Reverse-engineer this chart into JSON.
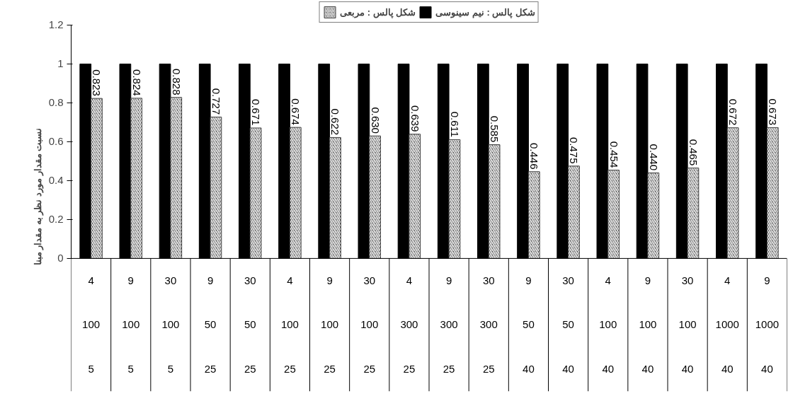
{
  "chart_data": {
    "type": "bar",
    "ylabel": "نسبت مقدار مورد نظر به مقدار مبنا",
    "categories": [
      "4\n100\n5",
      "9\n100\n5",
      "30\n100\n5",
      "9\n50\n25",
      "30\n50\n25",
      "4\n100\n25",
      "9\n100\n25",
      "30\n100\n25",
      "4\n300\n25",
      "9\n300\n25",
      "30\n300\n25",
      "9\n50\n40",
      "30\n50\n40",
      "4\n100\n40",
      "9\n100\n40",
      "30\n100\n40",
      "4\n1000\n40",
      "9\n1000\n40"
    ],
    "series": [
      {
        "name": "شکل پالس : نیم سینوسی",
        "color": "#000000",
        "values": [
          1,
          1,
          1,
          1,
          1,
          1,
          1,
          1,
          1,
          1,
          1,
          1,
          1,
          1,
          1,
          1,
          1,
          1
        ]
      },
      {
        "name": "شکل پالس : مربعی",
        "color": "#444444",
        "values": [
          0.823,
          0.824,
          0.828,
          0.727,
          0.671,
          0.674,
          0.622,
          0.63,
          0.639,
          0.611,
          0.585,
          0.446,
          0.475,
          0.454,
          0.44,
          0.465,
          0.672,
          0.673
        ],
        "value_labels": [
          "0.823",
          "0.824",
          "0.828",
          "0.727",
          "0.671",
          "0.674",
          "0.622",
          "0.630",
          "0.639",
          "0.611",
          "0.585",
          "0.446",
          "0.475",
          "0.454",
          "0.440",
          "0.465",
          "0.672",
          "0.673"
        ]
      }
    ],
    "ylim": [
      0,
      1.2
    ],
    "yticks": [
      0,
      0.2,
      0.4,
      0.6,
      0.8,
      1,
      1.2
    ],
    "grid": false,
    "legend": "top"
  }
}
